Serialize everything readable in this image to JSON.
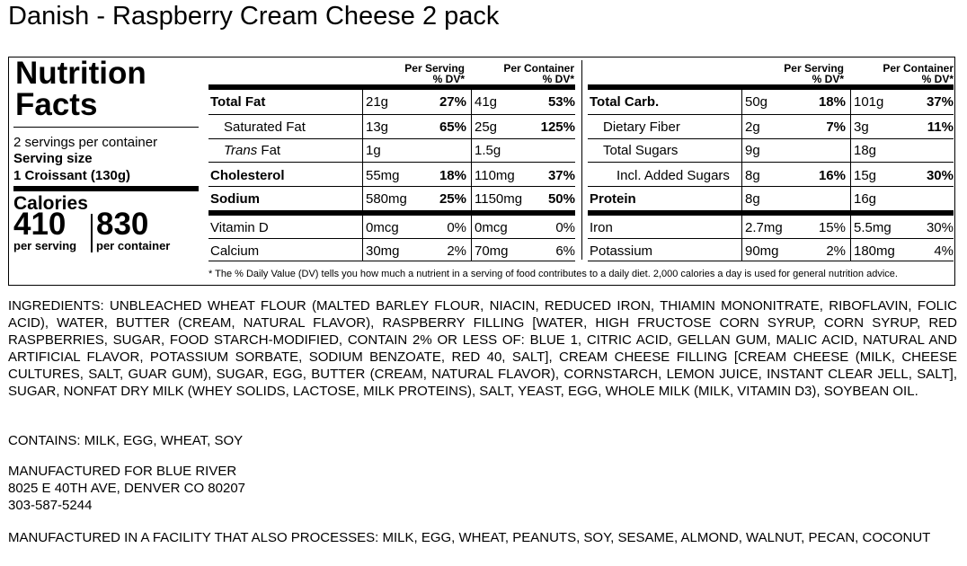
{
  "product_title": "Danish - Raspberry Cream Cheese 2 pack",
  "label": {
    "heading_line1": "Nutrition",
    "heading_line2": "Facts",
    "servings_per_container": "2 servings per container",
    "serving_size_label": "Serving size",
    "serving_size_value": "1 Croissant (130g)",
    "calories_label": "Calories",
    "calories_per_serving": "410",
    "calories_per_container": "830",
    "per_serving_label": "per serving",
    "per_container_label": "per container",
    "col_per_serving": "Per Serving",
    "col_per_container": "Per Container",
    "col_dv": "% DV*",
    "left_rows": [
      {
        "name": "Total Fat",
        "s_amt": "21g",
        "s_dv": "27%",
        "c_amt": "41g",
        "c_dv": "53%"
      },
      {
        "name": "Saturated Fat",
        "s_amt": "13g",
        "s_dv": "65%",
        "c_amt": "25g",
        "c_dv": "125%"
      },
      {
        "name_italic": "Trans",
        "name": " Fat",
        "s_amt": "1g",
        "c_amt": "1.5g"
      },
      {
        "name": "Cholesterol",
        "s_amt": "55mg",
        "s_dv": "18%",
        "c_amt": "110mg",
        "c_dv": "37%"
      },
      {
        "name": "Sodium",
        "s_amt": "580mg",
        "s_dv": "25%",
        "c_amt": "1150mg",
        "c_dv": "50%"
      },
      {
        "name": "Vitamin D",
        "s_amt": "0mcg",
        "s_dv": "0%",
        "c_amt": "0mcg",
        "c_dv": "0%"
      },
      {
        "name": "Calcium",
        "s_amt": "30mg",
        "s_dv": "2%",
        "c_amt": "70mg",
        "c_dv": "6%"
      }
    ],
    "right_rows": [
      {
        "name": "Total Carb.",
        "s_amt": "50g",
        "s_dv": "18%",
        "c_amt": "101g",
        "c_dv": "37%"
      },
      {
        "name": "Dietary Fiber",
        "s_amt": "2g",
        "s_dv": "7%",
        "c_amt": "3g",
        "c_dv": "11%"
      },
      {
        "name": "Total Sugars",
        "s_amt": "9g",
        "c_amt": "18g"
      },
      {
        "name": "Incl. Added Sugars",
        "s_amt": "8g",
        "s_dv": "16%",
        "c_amt": "15g",
        "c_dv": "30%"
      },
      {
        "name": "Protein",
        "s_amt": "8g",
        "c_amt": "16g"
      },
      {
        "name": "Iron",
        "s_amt": "2.7mg",
        "s_dv": "15%",
        "c_amt": "5.5mg",
        "c_dv": "30%"
      },
      {
        "name": "Potassium",
        "s_amt": "90mg",
        "s_dv": "2%",
        "c_amt": "180mg",
        "c_dv": "4%"
      }
    ],
    "footnote": "* The % Daily Value (DV) tells you how much a nutrient in a serving of food contributes to a daily diet. 2,000 calories a day is used for general nutrition advice."
  },
  "ingredients": "INGREDIENTS: UNBLEACHED WHEAT FLOUR (MALTED BARLEY FLOUR, NIACIN, REDUCED IRON, THIAMIN MONONITRATE, RIBOFLAVIN, FOLIC ACID), WATER, BUTTER (CREAM, NATURAL FLAVOR), RASPBERRY FILLING [WATER, HIGH FRUCTOSE CORN SYRUP, CORN SYRUP, RED RASPBERRIES, SUGAR, FOOD STARCH-MODIFIED, CONTAIN 2% OR LESS OF: BLUE 1, CITRIC ACID, GELLAN GUM, MALIC ACID, NATURAL AND ARTIFICIAL FLAVOR, POTASSIUM SORBATE, SODIUM BENZOATE, RED 40, SALT], CREAM CHEESE FILLING [CREAM CHEESE (MILK, CHEESE CULTURES, SALT, GUAR GUM), SUGAR, EGG, BUTTER (CREAM, NATURAL FLAVOR), CORNSTARCH, LEMON JUICE, INSTANT CLEAR JELL, SALT], SUGAR, NONFAT DRY MILK (WHEY SOLIDS, LACTOSE, MILK PROTEINS), SALT, YEAST, EGG, WHOLE MILK (MILK, VITAMIN D3), SOYBEAN OIL.",
  "contains": "CONTAINS: MILK, EGG, WHEAT, SOY",
  "manufacturer": {
    "line1": "MANUFACTURED FOR BLUE RIVER",
    "line2": "8025 E 40TH AVE, DENVER CO 80207",
    "line3": "303-587-5244"
  },
  "facility": "MANUFACTURED IN A FACILITY THAT ALSO PROCESSES: MILK, EGG, WHEAT, PEANUTS, SOY, SESAME, ALMOND, WALNUT, PECAN, COCONUT"
}
